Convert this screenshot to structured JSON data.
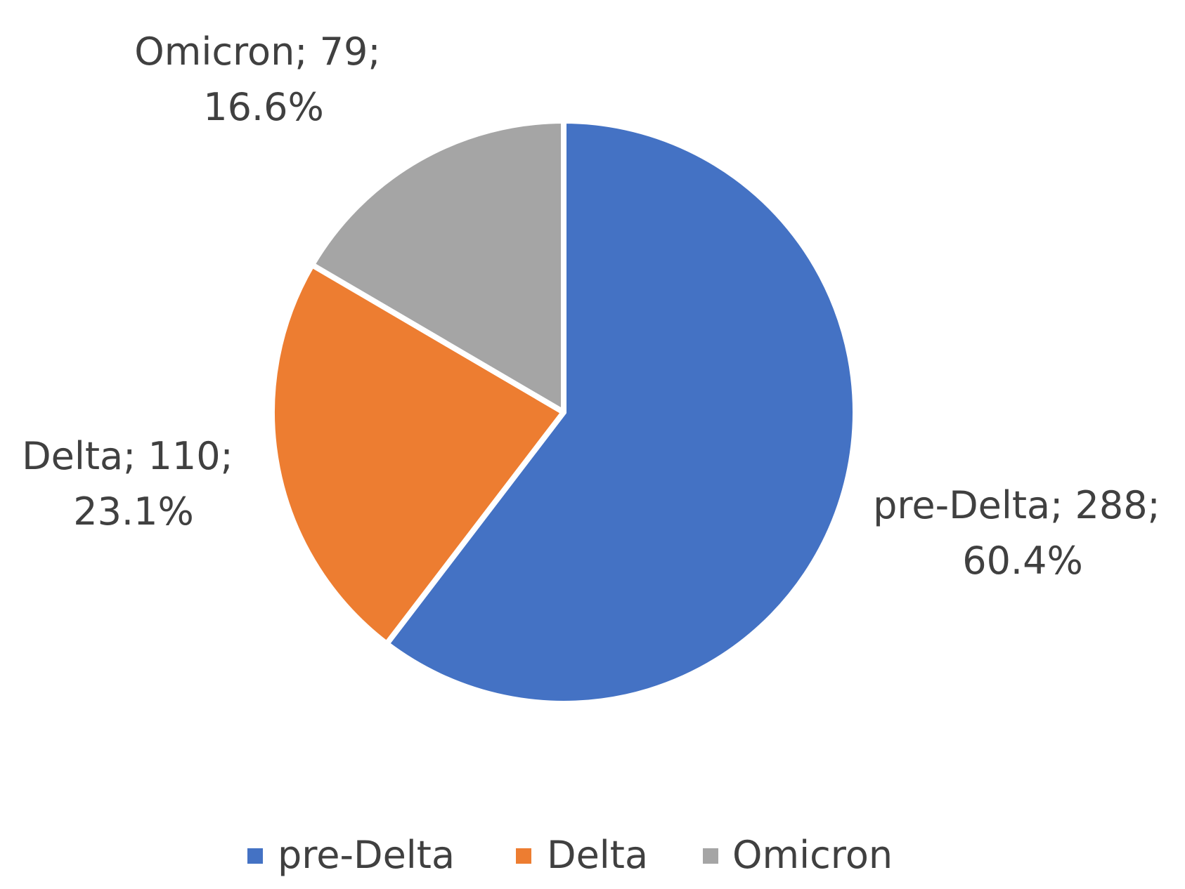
{
  "chart_data": {
    "type": "pie",
    "title": "",
    "categories": [
      "pre-Delta",
      "Delta",
      "Omicron"
    ],
    "values": [
      288,
      110,
      79
    ],
    "percentages": [
      "60.4%",
      "23.1%",
      "16.6%"
    ],
    "colors": [
      "#4472C4",
      "#ED7D31",
      "#A5A5A5"
    ],
    "legend_position": "bottom",
    "data_labels": [
      {
        "line1": "pre-Delta; 288;",
        "line2": "60.4%"
      },
      {
        "line1": "Delta; 110;",
        "line2": "23.1%"
      },
      {
        "line1": "Omicron; 79;",
        "line2": "16.6%"
      }
    ],
    "legend": [
      "pre-Delta",
      "Delta",
      "Omicron"
    ]
  }
}
